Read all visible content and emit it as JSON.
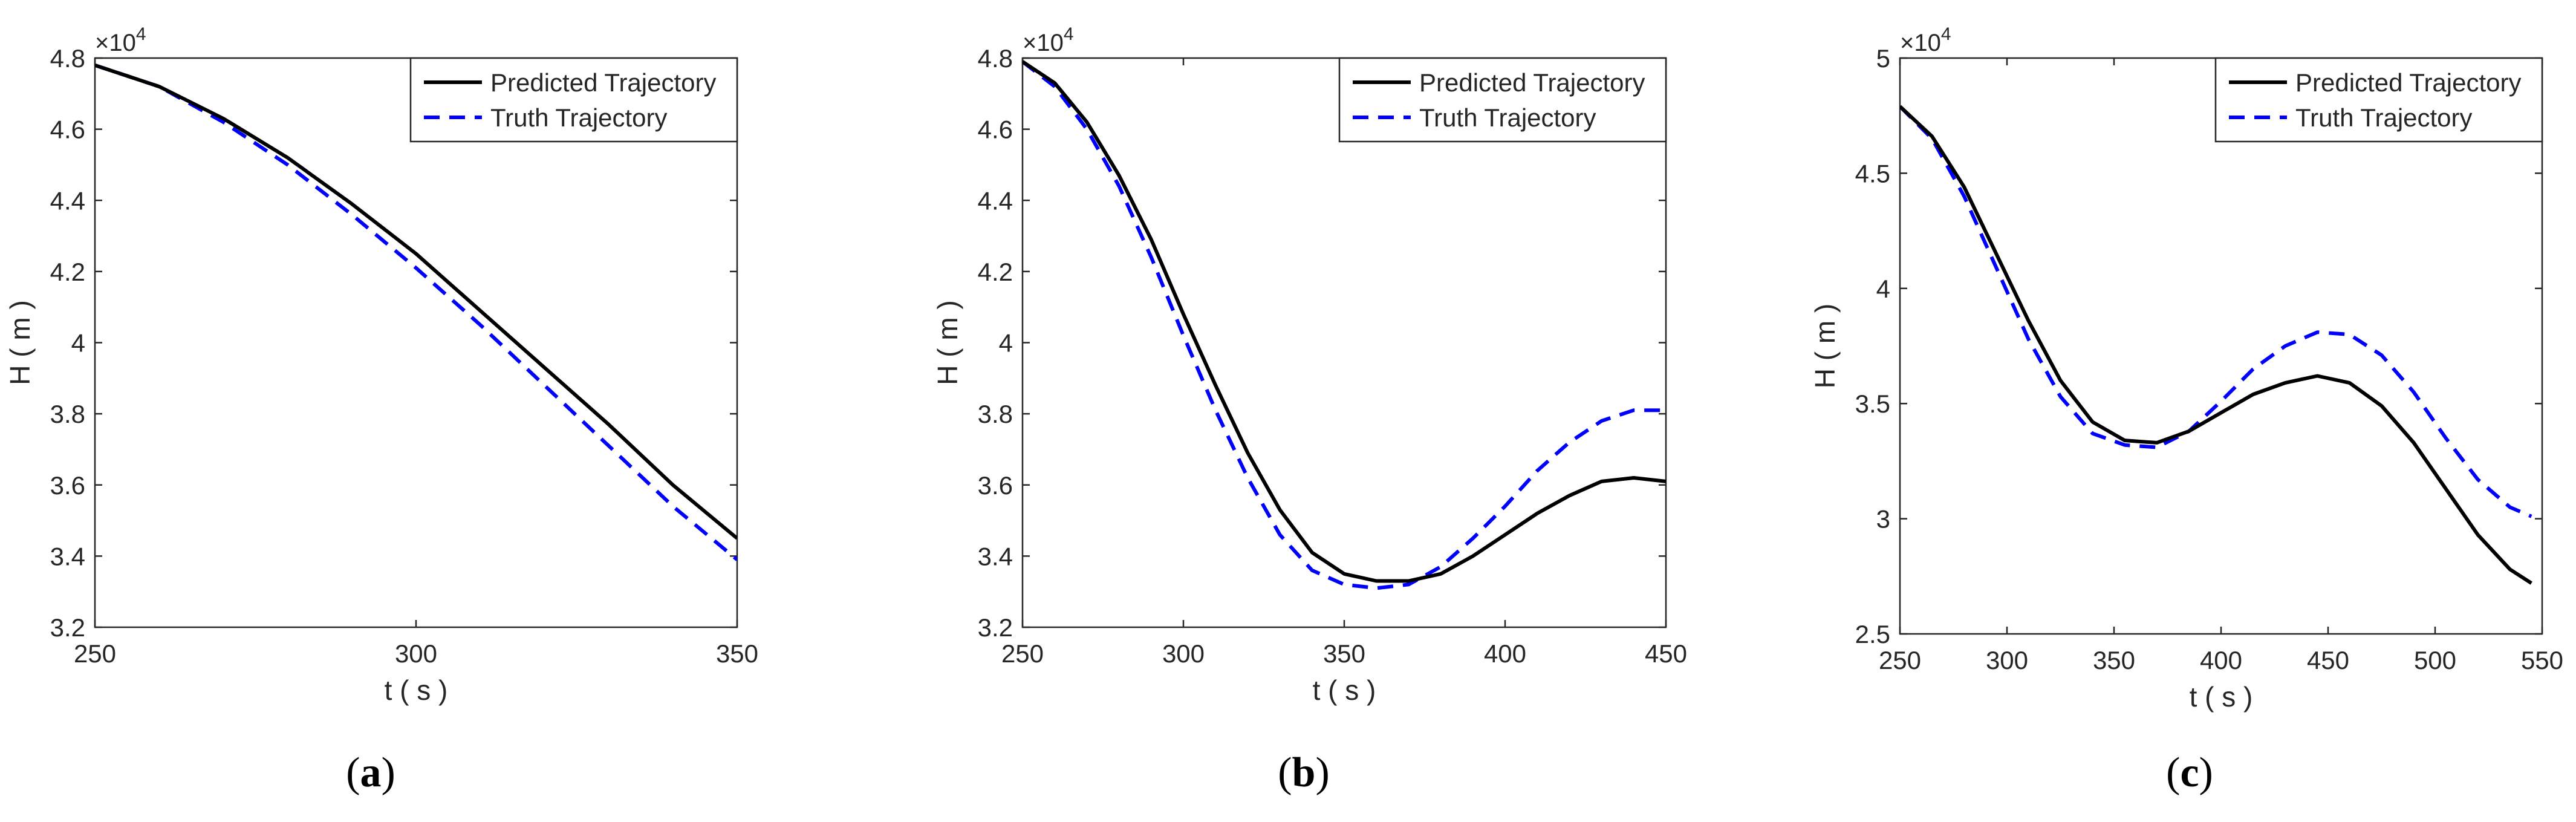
{
  "chart_data": [
    {
      "type": "line",
      "panel_label": "a",
      "xlabel": "t ( s )",
      "ylabel": "H ( m )",
      "xlim": [
        250,
        350
      ],
      "ylim": [
        3.2,
        4.8
      ],
      "y_exponent_label": "×10",
      "y_exponent_power": "4",
      "xticks": [
        250,
        300,
        350
      ],
      "yticks": [
        "3.2",
        "3.4",
        "3.6",
        "3.8",
        "4",
        "4.2",
        "4.4",
        "4.6",
        "4.8"
      ],
      "legend": {
        "position": "top-right"
      },
      "series": [
        {
          "name": "Predicted Trajectory",
          "style": "solid",
          "color": "#000000",
          "x": [
            250,
            260,
            270,
            280,
            290,
            300,
            310,
            320,
            330,
            340,
            350
          ],
          "y": [
            4.78,
            4.72,
            4.63,
            4.52,
            4.39,
            4.25,
            4.09,
            3.93,
            3.77,
            3.6,
            3.45
          ]
        },
        {
          "name": "Truth Trajectory",
          "style": "dashed",
          "color": "#0000ff",
          "x": [
            250,
            260,
            270,
            280,
            290,
            300,
            310,
            320,
            330,
            340,
            350
          ],
          "y": [
            4.78,
            4.72,
            4.62,
            4.5,
            4.36,
            4.21,
            4.05,
            3.88,
            3.71,
            3.54,
            3.39
          ]
        }
      ]
    },
    {
      "type": "line",
      "panel_label": "b",
      "xlabel": "t ( s )",
      "ylabel": "H ( m )",
      "xlim": [
        250,
        450
      ],
      "ylim": [
        3.2,
        4.8
      ],
      "y_exponent_label": "×10",
      "y_exponent_power": "4",
      "xticks": [
        250,
        300,
        350,
        400,
        450
      ],
      "yticks": [
        "3.2",
        "3.4",
        "3.6",
        "3.8",
        "4",
        "4.2",
        "4.4",
        "4.6",
        "4.8"
      ],
      "legend": {
        "position": "top-right"
      },
      "series": [
        {
          "name": "Predicted Trajectory",
          "style": "solid",
          "color": "#000000",
          "x": [
            250,
            260,
            270,
            280,
            290,
            300,
            310,
            320,
            330,
            340,
            350,
            360,
            370,
            380,
            390,
            400,
            410,
            420,
            430,
            440,
            450
          ],
          "y": [
            4.79,
            4.73,
            4.62,
            4.47,
            4.29,
            4.08,
            3.88,
            3.69,
            3.53,
            3.41,
            3.35,
            3.33,
            3.33,
            3.35,
            3.4,
            3.46,
            3.52,
            3.57,
            3.61,
            3.62,
            3.61
          ]
        },
        {
          "name": "Truth Trajectory",
          "style": "dashed",
          "color": "#0000ff",
          "x": [
            250,
            260,
            270,
            280,
            290,
            300,
            310,
            320,
            330,
            340,
            350,
            360,
            370,
            380,
            390,
            400,
            410,
            420,
            430,
            440,
            450
          ],
          "y": [
            4.79,
            4.72,
            4.6,
            4.44,
            4.24,
            4.02,
            3.81,
            3.62,
            3.46,
            3.36,
            3.32,
            3.31,
            3.32,
            3.37,
            3.45,
            3.54,
            3.64,
            3.72,
            3.78,
            3.81,
            3.81
          ]
        }
      ]
    },
    {
      "type": "line",
      "panel_label": "c",
      "xlabel": "t ( s )",
      "ylabel": "H ( m )",
      "xlim": [
        250,
        550
      ],
      "ylim": [
        2.5,
        5.0
      ],
      "y_exponent_label": "×10",
      "y_exponent_power": "4",
      "xticks": [
        250,
        300,
        350,
        400,
        450,
        500,
        550
      ],
      "yticks": [
        "2.5",
        "3",
        "3.5",
        "4",
        "4.5",
        "5"
      ],
      "legend": {
        "position": "top-right"
      },
      "series": [
        {
          "name": "Predicted Trajectory",
          "style": "solid",
          "color": "#000000",
          "x": [
            250,
            265,
            280,
            295,
            310,
            325,
            340,
            355,
            370,
            385,
            400,
            415,
            430,
            445,
            460,
            475,
            490,
            505,
            520,
            535,
            545
          ],
          "y": [
            4.79,
            4.66,
            4.44,
            4.15,
            3.86,
            3.6,
            3.42,
            3.34,
            3.33,
            3.38,
            3.46,
            3.54,
            3.59,
            3.62,
            3.59,
            3.49,
            3.33,
            3.13,
            2.93,
            2.78,
            2.72
          ]
        },
        {
          "name": "Truth Trajectory",
          "style": "dashed",
          "color": "#0000ff",
          "x": [
            250,
            265,
            280,
            295,
            310,
            325,
            340,
            355,
            370,
            385,
            400,
            415,
            430,
            445,
            460,
            475,
            490,
            505,
            520,
            535,
            545
          ],
          "y": [
            4.79,
            4.65,
            4.4,
            4.09,
            3.78,
            3.53,
            3.37,
            3.32,
            3.31,
            3.38,
            3.51,
            3.65,
            3.75,
            3.81,
            3.8,
            3.71,
            3.55,
            3.35,
            3.17,
            3.05,
            3.01
          ]
        }
      ]
    }
  ]
}
